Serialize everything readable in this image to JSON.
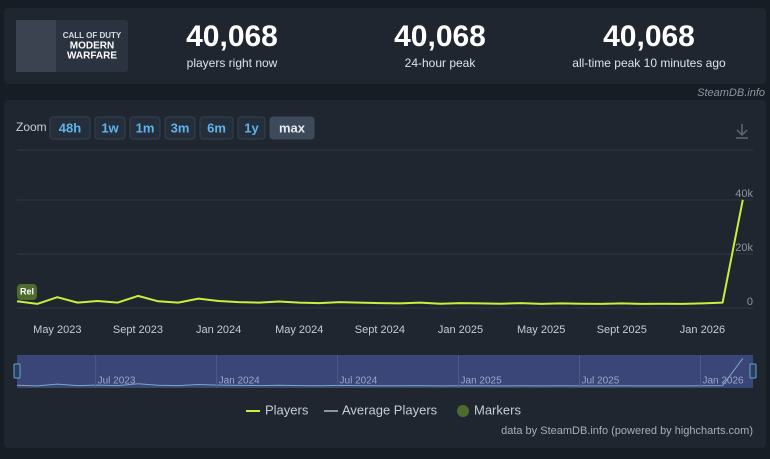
{
  "header": {
    "game_logo": [
      "CALL OF DUTY",
      "MODERN",
      "WARFARE"
    ],
    "stats": [
      {
        "value": "40,068",
        "label": "players right now"
      },
      {
        "value": "40,068",
        "label": "24-hour peak"
      },
      {
        "value": "40,068",
        "label": "all-time peak 10 minutes ago"
      }
    ],
    "source": "SteamDB.info"
  },
  "zoom": {
    "label": "Zoom",
    "buttons": [
      "48h",
      "1w",
      "1m",
      "3m",
      "6m",
      "1y",
      "max"
    ]
  },
  "chart_data": {
    "type": "line",
    "categories": [
      null,
      null,
      "May 2023",
      null,
      null,
      null,
      "Sept 2023",
      null,
      null,
      null,
      "Jan 2024",
      null,
      null,
      null,
      "May 2024",
      null,
      null,
      null,
      "Sept 2024",
      null,
      null,
      null,
      "Jan 2025",
      null,
      null,
      null,
      "May 2025",
      null,
      null,
      null,
      "Sept 2025",
      null,
      null,
      null,
      "Jan 2026",
      null,
      null
    ],
    "series": [
      {
        "name": "Players",
        "color": "#c8f03c",
        "values": [
          2500,
          1500,
          4000,
          2000,
          2600,
          2000,
          4500,
          2500,
          2000,
          3500,
          2600,
          2200,
          2000,
          2400,
          2000,
          1800,
          2200,
          2000,
          1800,
          1700,
          2000,
          1600,
          1800,
          1700,
          1600,
          1800,
          1500,
          1700,
          1600,
          1500,
          1700,
          1500,
          1600,
          1500,
          1700,
          2000,
          40068
        ]
      }
    ],
    "ylim": [
      0,
      60000
    ],
    "yticks": [
      0,
      {
        "value": 20000,
        "label": "20k"
      },
      {
        "value": 40000,
        "label": "40k"
      }
    ],
    "grid": true,
    "average": {
      "name": "Average Players",
      "color": "#8b95a0"
    },
    "markers": {
      "name": "Markers",
      "color": "#4d6b2f",
      "label": "Rel"
    }
  },
  "navigator": {
    "categories": [
      null,
      null,
      null,
      null,
      "Jul 2023",
      null,
      null,
      null,
      null,
      null,
      "Jan 2024",
      null,
      null,
      null,
      null,
      null,
      "Jul 2024",
      null,
      null,
      null,
      null,
      null,
      "Jan 2025",
      null,
      null,
      null,
      null,
      null,
      "Jul 2025",
      null,
      null,
      null,
      null,
      null,
      "Jan 2026",
      null,
      null
    ]
  },
  "credits": "data by SteamDB.info (powered by highcharts.com)"
}
